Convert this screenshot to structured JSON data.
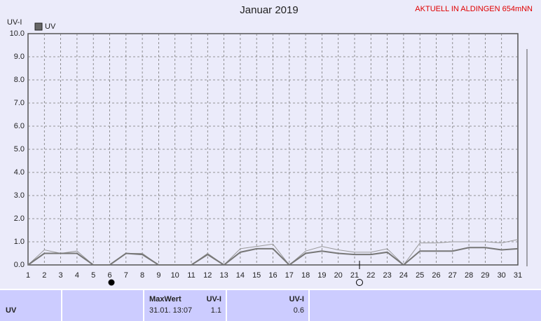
{
  "chart_data": {
    "type": "line",
    "title": "Januar 2019",
    "note": "AKTUELL IN ALDINGEN 654mNN",
    "y_label": "UV-I",
    "categories": [
      "1",
      "2",
      "3",
      "4",
      "5",
      "6",
      "7",
      "8",
      "9",
      "10",
      "11",
      "12",
      "13",
      "14",
      "15",
      "16",
      "17",
      "18",
      "19",
      "20",
      "21",
      "22",
      "23",
      "24",
      "25",
      "26",
      "27",
      "28",
      "29",
      "30",
      "31"
    ],
    "series": [
      {
        "name": "UV",
        "color": "#777777",
        "values": [
          0,
          0.5,
          0.5,
          0.5,
          0,
          0,
          0.5,
          0.45,
          0,
          0,
          0,
          0.45,
          0,
          0.55,
          0.7,
          0.7,
          0,
          0.5,
          0.6,
          0.5,
          0.45,
          0.45,
          0.55,
          0,
          0.6,
          0.6,
          0.6,
          0.75,
          0.75,
          0.65,
          0.7
        ]
      },
      {
        "color": "#999999",
        "values": [
          0,
          0.65,
          0.5,
          0.6,
          0,
          0,
          0.5,
          0.5,
          0,
          0,
          0,
          0.5,
          0,
          0.7,
          0.8,
          0.9,
          0,
          0.6,
          0.8,
          0.65,
          0.55,
          0.55,
          0.7,
          0,
          0.95,
          0.95,
          1.0,
          1.0,
          1.0,
          0.95,
          1.1
        ]
      }
    ],
    "ylim": [
      0,
      10
    ],
    "yticks": [
      {
        "value": 0,
        "label": "0.0"
      },
      {
        "value": 1,
        "label": "1.0"
      },
      {
        "value": 2,
        "label": "2.0"
      },
      {
        "value": 3,
        "label": "3.0"
      },
      {
        "value": 4,
        "label": "4.0"
      },
      {
        "value": 5,
        "label": "5.0"
      },
      {
        "value": 6,
        "label": "6.0"
      },
      {
        "value": 7,
        "label": "7.0"
      },
      {
        "value": 8,
        "label": "8.0"
      },
      {
        "value": 9,
        "label": "9.0"
      },
      {
        "value": 10,
        "label": "10.0"
      }
    ],
    "grid": true
  },
  "table": {
    "label": "UV",
    "max_header": "MaxWert",
    "max_unit": "UV-I",
    "max_time": "31.01.  13:07",
    "max_value": 1.1,
    "avg_unit": "UV-I",
    "avg_value": 0.6
  }
}
